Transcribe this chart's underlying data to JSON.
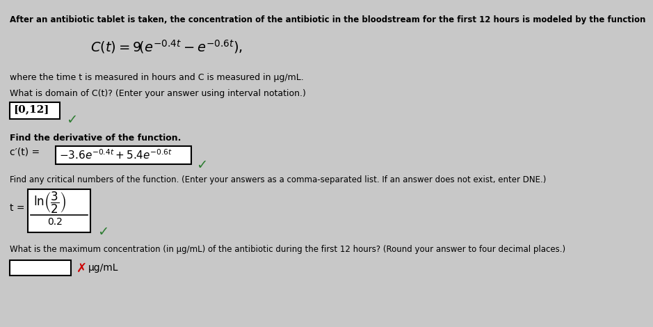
{
  "bg_color": "#c8c8c8",
  "text_color": "#000000",
  "red_color": "#cc0000",
  "green_color": "#2e7d32",
  "title_text": "After an antibiotic tablet is taken, the concentration of the antibiotic in the bloodstream for the first 12 hours is modeled by the function",
  "where_line": "where the time t is measured in hours and C is measured in μg/mL.",
  "domain_q": "What is domain of C(t)? (Enter your answer using interval notation.)",
  "domain_answer": "[0,12]",
  "deriv_q": "Find the derivative of the function.",
  "critical_q": "Find any critical numbers of the function. (Enter your answers as a comma-separated list. If an answer does not exist, enter DNE.)",
  "critical_denom": "0.2",
  "max_q": "What is the maximum concentration (in μg/mL) of the antibiotic during the first 12 hours? (Round your answer to four decimal places.)",
  "max_unit": "μg/mL"
}
